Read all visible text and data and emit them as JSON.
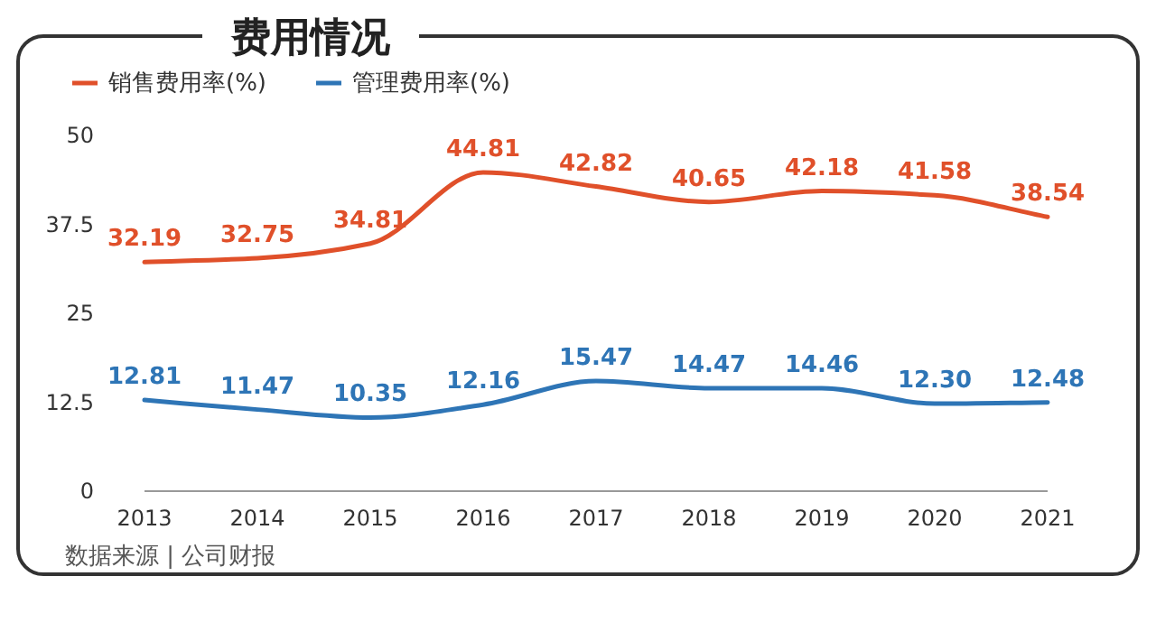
{
  "chart_data": {
    "type": "line",
    "title": "费用情况",
    "categories": [
      "2013",
      "2014",
      "2015",
      "2016",
      "2017",
      "2018",
      "2019",
      "2020",
      "2021"
    ],
    "series": [
      {
        "name": "销售费用率(%)",
        "color": "#e0502a",
        "values": [
          32.19,
          32.75,
          34.81,
          44.81,
          42.82,
          40.65,
          42.18,
          41.58,
          38.54
        ],
        "value_labels": [
          "32.19",
          "32.75",
          "34.81",
          "44.81",
          "42.82",
          "40.65",
          "42.18",
          "41.58",
          "38.54"
        ]
      },
      {
        "name": "管理费用率(%)",
        "color": "#2e75b6",
        "values": [
          12.81,
          11.47,
          10.35,
          12.16,
          15.47,
          14.47,
          14.46,
          12.3,
          12.48
        ],
        "value_labels": [
          "12.81",
          "11.47",
          "10.35",
          "12.16",
          "15.47",
          "14.47",
          "14.46",
          "12.30",
          "12.48"
        ]
      }
    ],
    "ylim": [
      0,
      50
    ],
    "yticks": [
      0,
      12.5,
      25,
      37.5,
      50
    ],
    "legend": "top left",
    "grid": false,
    "marker": "none",
    "line_style": "solid",
    "annotations": [
      "数据来源 | 公司财报"
    ]
  }
}
